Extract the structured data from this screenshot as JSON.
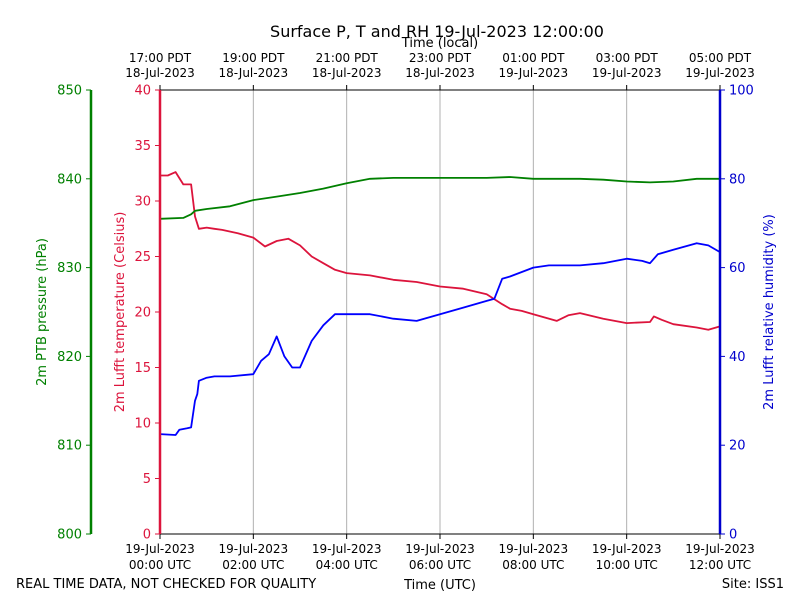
{
  "chart_data": {
    "type": "line",
    "title": "Surface P, T and RH 19-Jul-2023 12:00:00",
    "xlabel": "Time (UTC)",
    "xlabel_top": "Time (local)",
    "x_range_hours_utc": [
      0,
      12
    ],
    "x_ticks_bottom": [
      {
        "line1": "19-Jul-2023",
        "line2": "00:00 UTC"
      },
      {
        "line1": "19-Jul-2023",
        "line2": "02:00 UTC"
      },
      {
        "line1": "19-Jul-2023",
        "line2": "04:00 UTC"
      },
      {
        "line1": "19-Jul-2023",
        "line2": "06:00 UTC"
      },
      {
        "line1": "19-Jul-2023",
        "line2": "08:00 UTC"
      },
      {
        "line1": "19-Jul-2023",
        "line2": "10:00 UTC"
      },
      {
        "line1": "19-Jul-2023",
        "line2": "12:00 UTC"
      }
    ],
    "x_ticks_top": [
      {
        "line1": "17:00 PDT",
        "line2": "18-Jul-2023"
      },
      {
        "line1": "19:00 PDT",
        "line2": "18-Jul-2023"
      },
      {
        "line1": "21:00 PDT",
        "line2": "18-Jul-2023"
      },
      {
        "line1": "23:00 PDT",
        "line2": "18-Jul-2023"
      },
      {
        "line1": "01:00 PDT",
        "line2": "19-Jul-2023"
      },
      {
        "line1": "03:00 PDT",
        "line2": "19-Jul-2023"
      },
      {
        "line1": "05:00 PDT",
        "line2": "19-Jul-2023"
      }
    ],
    "grid_x": true,
    "footer_left": "REAL TIME DATA, NOT CHECKED FOR QUALITY",
    "footer_right": "Site: ISS1",
    "axes": {
      "pressure": {
        "label": "2m PTB pressure (hPa)",
        "range": [
          800,
          850
        ],
        "ticks": [
          "800",
          "810",
          "820",
          "830",
          "840",
          "850"
        ],
        "color": "#008000"
      },
      "temperature": {
        "label": "2m Lufft temperature (Celsius)",
        "range": [
          0,
          40
        ],
        "ticks": [
          "0",
          "5",
          "10",
          "15",
          "20",
          "25",
          "30",
          "35",
          "40"
        ],
        "color": "#dc143c"
      },
      "humidity": {
        "label": "2m Lufft relative humidity (%)",
        "range": [
          0,
          100
        ],
        "ticks": [
          "0",
          "20",
          "40",
          "60",
          "80",
          "100"
        ],
        "color": "#0000cd"
      }
    },
    "series": [
      {
        "axis": "temperature",
        "color": "#dc143c",
        "x": [
          "00:00",
          "00:10",
          "00:20",
          "00:30",
          "00:40",
          "00:45",
          "00:50",
          "01:00",
          "01:10",
          "01:20",
          "01:40",
          "02:00",
          "02:15",
          "02:30",
          "02:45",
          "03:00",
          "03:15",
          "03:30",
          "03:45",
          "04:00",
          "04:30",
          "05:00",
          "05:30",
          "06:00",
          "06:30",
          "07:00",
          "07:20",
          "07:30",
          "07:45",
          "08:00",
          "08:30",
          "08:45",
          "09:00",
          "09:30",
          "10:00",
          "10:30",
          "10:35",
          "10:45",
          "11:00",
          "11:30",
          "11:45",
          "12:00"
        ],
        "y": [
          32.3,
          32.3,
          32.6,
          31.5,
          31.5,
          28.6,
          27.5,
          27.6,
          27.5,
          27.4,
          27.1,
          26.7,
          25.9,
          26.4,
          26.6,
          26.0,
          25.0,
          24.4,
          23.8,
          23.5,
          23.3,
          22.9,
          22.7,
          22.3,
          22.1,
          21.6,
          20.7,
          20.3,
          20.1,
          19.8,
          19.2,
          19.7,
          19.9,
          19.4,
          19.0,
          19.1,
          19.6,
          19.3,
          18.9,
          18.6,
          18.4,
          18.7
        ]
      },
      {
        "axis": "pressure",
        "color": "#008000",
        "x": [
          "00:00",
          "00:30",
          "00:40",
          "00:45",
          "01:00",
          "01:30",
          "02:00",
          "02:30",
          "03:00",
          "03:30",
          "04:00",
          "04:30",
          "05:00",
          "06:00",
          "07:00",
          "07:30",
          "08:00",
          "09:00",
          "09:30",
          "10:00",
          "10:30",
          "11:00",
          "11:30",
          "12:00"
        ],
        "y": [
          835.5,
          835.6,
          836.0,
          836.4,
          836.6,
          836.9,
          837.6,
          838.0,
          838.4,
          838.9,
          839.5,
          840.0,
          840.1,
          840.1,
          840.1,
          840.2,
          840.0,
          840.0,
          839.9,
          839.7,
          839.6,
          839.7,
          840.0,
          840.0
        ]
      },
      {
        "axis": "humidity",
        "color": "#0000ff",
        "x": [
          "00:00",
          "00:20",
          "00:25",
          "00:35",
          "00:40",
          "00:45",
          "00:48",
          "00:50",
          "01:00",
          "01:10",
          "01:30",
          "02:00",
          "02:10",
          "02:20",
          "02:30",
          "02:40",
          "02:50",
          "03:00",
          "03:15",
          "03:30",
          "03:45",
          "04:00",
          "04:10",
          "04:30",
          "05:00",
          "05:30",
          "06:00",
          "06:30",
          "07:00",
          "07:10",
          "07:20",
          "07:30",
          "08:00",
          "08:20",
          "08:30",
          "09:00",
          "09:30",
          "10:00",
          "10:20",
          "10:30",
          "10:40",
          "11:00",
          "11:30",
          "11:45",
          "12:00"
        ],
        "y": [
          22.5,
          22.3,
          23.5,
          23.8,
          24,
          30,
          31.5,
          34.5,
          35.2,
          35.5,
          35.5,
          36,
          39,
          40.5,
          44.5,
          40,
          37.5,
          37.5,
          43.5,
          47,
          49.5,
          49.5,
          49.5,
          49.5,
          48.5,
          48,
          49.5,
          51,
          52.5,
          53,
          57.5,
          58,
          60,
          60.5,
          60.5,
          60.5,
          61,
          62,
          61.5,
          61,
          63,
          64,
          65.5,
          65,
          63.5
        ]
      }
    ]
  }
}
